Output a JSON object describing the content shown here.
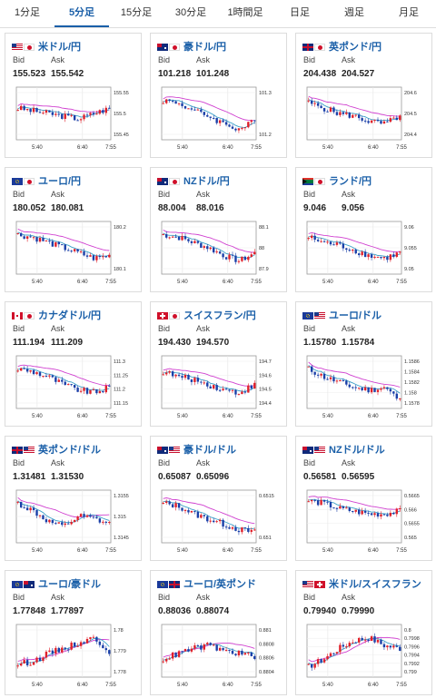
{
  "tabs": [
    {
      "label": "1分足",
      "active": false
    },
    {
      "label": "5分足",
      "active": true
    },
    {
      "label": "15分足",
      "active": false
    },
    {
      "label": "30分足",
      "active": false
    },
    {
      "label": "1時間足",
      "active": false
    },
    {
      "label": "日足",
      "active": false
    },
    {
      "label": "週足",
      "active": false
    },
    {
      "label": "月足",
      "active": false
    }
  ],
  "bid_label": "Bid",
  "ask_label": "Ask",
  "x_ticks": [
    "5:40",
    "6:40",
    "7:55"
  ],
  "colors": {
    "up": "#e0202a",
    "down": "#1a3fa8",
    "ma_short": "#3aa0c8",
    "ma_long": "#d040d0",
    "accent": "#1a5fa8"
  },
  "pairs": [
    {
      "name": "米ドル/円",
      "flags": [
        "us",
        "jp"
      ],
      "bid": "155.523",
      "ask": "155.542",
      "y_ticks": [
        "155.55",
        "155.5",
        "155.45"
      ],
      "chart_data": {
        "type": "candlestick",
        "y_ticks": [
          "155.55",
          "155.5",
          "155.45"
        ],
        "x_ticks": [
          "5:40",
          "6:40",
          "7:55"
        ],
        "trend": [
          0.6,
          0.55,
          0.5,
          0.45,
          0.4,
          0.5,
          0.6
        ]
      }
    },
    {
      "name": "豪ドル/円",
      "flags": [
        "au",
        "jp"
      ],
      "bid": "101.218",
      "ask": "101.248",
      "y_ticks": [
        "101.3",
        "101.2"
      ],
      "chart_data": {
        "type": "candlestick",
        "y_ticks": [
          "101.3",
          "101.2"
        ],
        "x_ticks": [
          "5:40",
          "6:40",
          "7:55"
        ],
        "trend": [
          0.75,
          0.7,
          0.55,
          0.45,
          0.3,
          0.2,
          0.35
        ]
      }
    },
    {
      "name": "英ポンド/円",
      "flags": [
        "gb",
        "jp"
      ],
      "bid": "204.438",
      "ask": "204.527",
      "y_ticks": [
        "204.6",
        "204.5",
        "204.4"
      ],
      "chart_data": {
        "type": "candlestick",
        "y_ticks": [
          "204.6",
          "204.5",
          "204.4"
        ],
        "x_ticks": [
          "5:40",
          "6:40",
          "7:55"
        ],
        "trend": [
          0.7,
          0.6,
          0.5,
          0.45,
          0.35,
          0.3,
          0.45
        ]
      }
    },
    {
      "name": "ユーロ/円",
      "flags": [
        "eu",
        "jp"
      ],
      "bid": "180.052",
      "ask": "180.081",
      "y_ticks": [
        "180.2",
        "180.1"
      ],
      "chart_data": {
        "type": "candlestick",
        "y_ticks": [
          "180.2",
          "180.1"
        ],
        "x_ticks": [
          "5:40",
          "6:40",
          "7:55"
        ],
        "trend": [
          0.75,
          0.7,
          0.6,
          0.5,
          0.4,
          0.3,
          0.35
        ]
      }
    },
    {
      "name": "NZドル/円",
      "flags": [
        "nz",
        "jp"
      ],
      "bid": "88.004",
      "ask": "88.016",
      "y_ticks": [
        "88.1",
        "88",
        "87.9"
      ],
      "chart_data": {
        "type": "candlestick",
        "y_ticks": [
          "88.1",
          "88",
          "87.9"
        ],
        "x_ticks": [
          "5:40",
          "6:40",
          "7:55"
        ],
        "trend": [
          0.75,
          0.7,
          0.6,
          0.5,
          0.35,
          0.25,
          0.4
        ]
      }
    },
    {
      "name": "ランド/円",
      "flags": [
        "za",
        "jp"
      ],
      "bid": "9.046",
      "ask": "9.056",
      "y_ticks": [
        "9.06",
        "9.055",
        "9.05"
      ],
      "chart_data": {
        "type": "candlestick",
        "y_ticks": [
          "9.06",
          "9.055",
          "9.05"
        ],
        "x_ticks": [
          "5:40",
          "6:40",
          "7:55"
        ],
        "trend": [
          0.7,
          0.6,
          0.55,
          0.45,
          0.35,
          0.3,
          0.4
        ]
      }
    },
    {
      "name": "カナダドル/円",
      "flags": [
        "ca",
        "jp"
      ],
      "bid": "111.194",
      "ask": "111.209",
      "y_ticks": [
        "111.3",
        "111.25",
        "111.2",
        "111.15"
      ],
      "chart_data": {
        "type": "candlestick",
        "y_ticks": [
          "111.3",
          "111.25",
          "111.2",
          "111.15"
        ],
        "x_ticks": [
          "5:40",
          "6:40",
          "7:55"
        ],
        "trend": [
          0.75,
          0.7,
          0.6,
          0.45,
          0.35,
          0.3,
          0.4
        ]
      }
    },
    {
      "name": "スイスフラン/円",
      "flags": [
        "ch",
        "jp"
      ],
      "bid": "194.430",
      "ask": "194.570",
      "y_ticks": [
        "194.7",
        "194.6",
        "194.5",
        "194.4"
      ],
      "chart_data": {
        "type": "candlestick",
        "y_ticks": [
          "194.7",
          "194.6",
          "194.5",
          "194.4"
        ],
        "x_ticks": [
          "5:40",
          "6:40",
          "7:55"
        ],
        "trend": [
          0.7,
          0.6,
          0.55,
          0.45,
          0.35,
          0.3,
          0.45
        ]
      }
    },
    {
      "name": "ユーロ/ドル",
      "flags": [
        "eu",
        "us"
      ],
      "bid": "1.15780",
      "ask": "1.15784",
      "y_ticks": [
        "1.1586",
        "1.1584",
        "1.1582",
        "1.158",
        "1.1578"
      ],
      "chart_data": {
        "type": "candlestick",
        "y_ticks": [
          "1.1586",
          "1.1584",
          "1.1582",
          "1.158",
          "1.1578"
        ],
        "x_ticks": [
          "5:40",
          "6:40",
          "7:55"
        ],
        "trend": [
          0.75,
          0.6,
          0.5,
          0.4,
          0.35,
          0.4,
          0.15
        ]
      }
    },
    {
      "name": "英ポンド/ドル",
      "flags": [
        "gb",
        "us"
      ],
      "bid": "1.31481",
      "ask": "1.31530",
      "y_ticks": [
        "1.3155",
        "1.315",
        "1.3145"
      ],
      "chart_data": {
        "type": "candlestick",
        "y_ticks": [
          "1.3155",
          "1.315",
          "1.3145"
        ],
        "x_ticks": [
          "5:40",
          "6:40",
          "7:55"
        ],
        "trend": [
          0.75,
          0.6,
          0.4,
          0.3,
          0.5,
          0.45,
          0.35
        ]
      }
    },
    {
      "name": "豪ドル/ドル",
      "flags": [
        "au",
        "us"
      ],
      "bid": "0.65087",
      "ask": "0.65096",
      "y_ticks": [
        "0.6515",
        "0.651"
      ],
      "chart_data": {
        "type": "candlestick",
        "y_ticks": [
          "0.6515",
          "0.651"
        ],
        "x_ticks": [
          "5:40",
          "6:40",
          "7:55"
        ],
        "trend": [
          0.75,
          0.7,
          0.55,
          0.45,
          0.35,
          0.25,
          0.2
        ]
      }
    },
    {
      "name": "NZドル/ドル",
      "flags": [
        "nz",
        "us"
      ],
      "bid": "0.56581",
      "ask": "0.56595",
      "y_ticks": [
        "0.5665",
        "0.566",
        "0.5655",
        "0.565"
      ],
      "chart_data": {
        "type": "candlestick",
        "y_ticks": [
          "0.5665",
          "0.566",
          "0.5655",
          "0.565"
        ],
        "x_ticks": [
          "5:40",
          "6:40",
          "7:55"
        ],
        "trend": [
          0.8,
          0.75,
          0.65,
          0.6,
          0.55,
          0.55,
          0.6
        ]
      }
    },
    {
      "name": "ユーロ/豪ドル",
      "flags": [
        "eu",
        "au"
      ],
      "bid": "1.77848",
      "ask": "1.77897",
      "y_ticks": [
        "1.78",
        "1.779",
        "1.778"
      ],
      "chart_data": {
        "type": "candlestick",
        "y_ticks": [
          "1.78",
          "1.779",
          "1.778"
        ],
        "x_ticks": [
          "5:40",
          "6:40",
          "7:55"
        ],
        "trend": [
          0.25,
          0.3,
          0.45,
          0.55,
          0.65,
          0.75,
          0.5
        ]
      }
    },
    {
      "name": "ユーロ/英ポンド",
      "flags": [
        "eu",
        "gb"
      ],
      "bid": "0.88036",
      "ask": "0.88074",
      "y_ticks": [
        "0.881",
        "0.8808",
        "0.8806",
        "0.8804"
      ],
      "chart_data": {
        "type": "candlestick",
        "y_ticks": [
          "0.881",
          "0.8808",
          "0.8806",
          "0.8804"
        ],
        "x_ticks": [
          "5:40",
          "6:40",
          "7:55"
        ],
        "trend": [
          0.35,
          0.45,
          0.55,
          0.6,
          0.5,
          0.45,
          0.4
        ]
      }
    },
    {
      "name": "米ドル/スイスフラン",
      "flags": [
        "us",
        "ch"
      ],
      "bid": "0.79940",
      "ask": "0.79990",
      "y_ticks": [
        "0.8",
        "0.7998",
        "0.7996",
        "0.7994",
        "0.7992",
        "0.799"
      ],
      "chart_data": {
        "type": "candlestick",
        "y_ticks": [
          "0.8",
          "0.7998",
          "0.7996",
          "0.7994",
          "0.7992",
          "0.799"
        ],
        "x_ticks": [
          "5:40",
          "6:40",
          "7:55"
        ],
        "trend": [
          0.2,
          0.35,
          0.55,
          0.7,
          0.75,
          0.6,
          0.55
        ]
      }
    }
  ]
}
